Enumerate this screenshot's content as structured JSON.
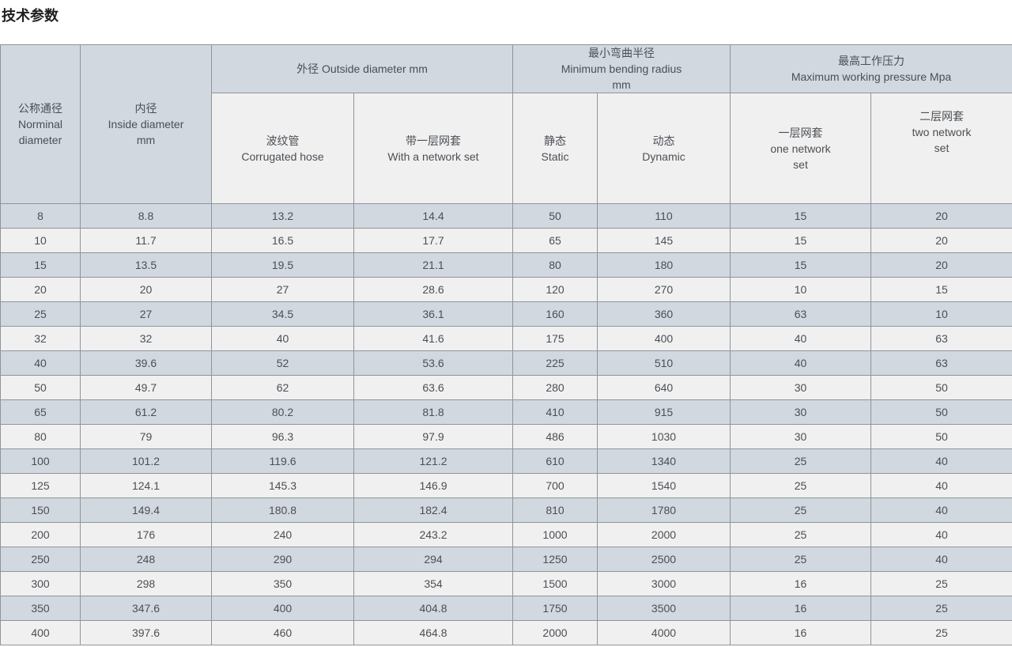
{
  "page_title": "技术参数",
  "colors": {
    "row_alt_bg": "#d1d8df",
    "row_bg": "#f0f0f0",
    "border": "#8f9599",
    "text": "#4b4f54",
    "title": "#1f1f1f"
  },
  "table": {
    "header": {
      "col_nominal": "公称通径\nNorminal\ndiameter",
      "col_inside": "内径\nInside diameter\nmm",
      "group_outside": "外径 Outside diameter mm",
      "col_corrugated": "波纹管\nCorrugated hose",
      "col_network": "带一层网套\nWith a network set",
      "group_bending": "最小弯曲半径\nMinimum bending radius\nmm",
      "col_static": "静态\nStatic",
      "col_dynamic": "动态\nDynamic",
      "group_pressure": "最高工作压力\nMaximum working pressure Mpa",
      "col_one_network": "一层网套\none network\nset",
      "col_two_network": "二层网套\ntwo network\nset"
    },
    "rows": [
      [
        "8",
        "8.8",
        "13.2",
        "14.4",
        "50",
        "110",
        "15",
        "20"
      ],
      [
        "10",
        "11.7",
        "16.5",
        "17.7",
        "65",
        "145",
        "15",
        "20"
      ],
      [
        "15",
        "13.5",
        "19.5",
        "21.1",
        "80",
        "180",
        "15",
        "20"
      ],
      [
        "20",
        "20",
        "27",
        "28.6",
        "120",
        "270",
        "10",
        "15"
      ],
      [
        "25",
        "27",
        "34.5",
        "36.1",
        "160",
        "360",
        "63",
        "10"
      ],
      [
        "32",
        "32",
        "40",
        "41.6",
        "175",
        "400",
        "40",
        "63"
      ],
      [
        "40",
        "39.6",
        "52",
        "53.6",
        "225",
        "510",
        "40",
        "63"
      ],
      [
        "50",
        "49.7",
        "62",
        "63.6",
        "280",
        "640",
        "30",
        "50"
      ],
      [
        "65",
        "61.2",
        "80.2",
        "81.8",
        "410",
        "915",
        "30",
        "50"
      ],
      [
        "80",
        "79",
        "96.3",
        "97.9",
        "486",
        "1030",
        "30",
        "50"
      ],
      [
        "100",
        "101.2",
        "119.6",
        "121.2",
        "610",
        "1340",
        "25",
        "40"
      ],
      [
        "125",
        "124.1",
        "145.3",
        "146.9",
        "700",
        "1540",
        "25",
        "40"
      ],
      [
        "150",
        "149.4",
        "180.8",
        "182.4",
        "810",
        "1780",
        "25",
        "40"
      ],
      [
        "200",
        "176",
        "240",
        "243.2",
        "1000",
        "2000",
        "25",
        "40"
      ],
      [
        "250",
        "248",
        "290",
        "294",
        "1250",
        "2500",
        "25",
        "40"
      ],
      [
        "300",
        "298",
        "350",
        "354",
        "1500",
        "3000",
        "16",
        "25"
      ],
      [
        "350",
        "347.6",
        "400",
        "404.8",
        "1750",
        "3500",
        "16",
        "25"
      ],
      [
        "400",
        "397.6",
        "460",
        "464.8",
        "2000",
        "4000",
        "16",
        "25"
      ]
    ]
  }
}
